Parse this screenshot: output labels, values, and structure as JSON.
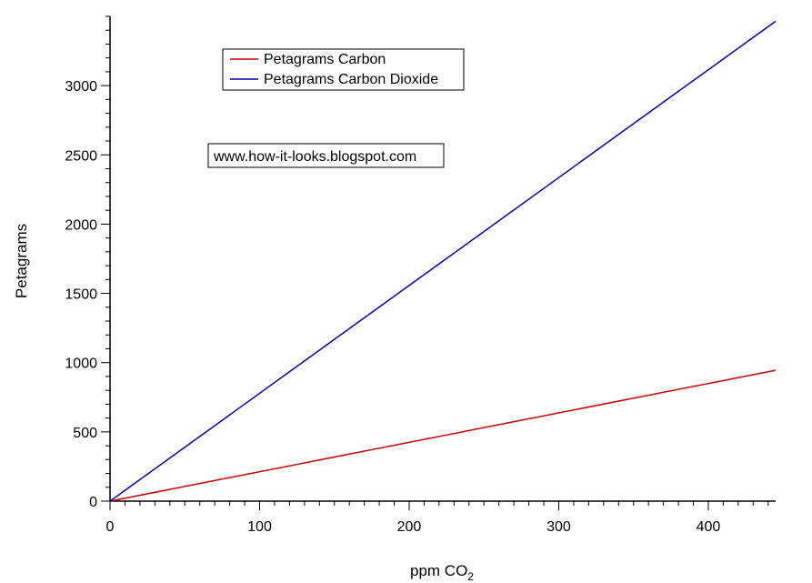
{
  "chart_data": {
    "type": "line",
    "xlabel_main": "ppm CO",
    "xlabel_sub": "2",
    "ylabel": "Petagrams",
    "xlim": [
      0,
      445
    ],
    "ylim": [
      0,
      3500
    ],
    "x_ticks": [
      0,
      100,
      200,
      300,
      400
    ],
    "y_ticks": [
      0,
      500,
      1000,
      1500,
      2000,
      2500,
      3000
    ],
    "x_minor_step": 10,
    "y_minor_step": 100,
    "grid": false,
    "legend_position": "top-center",
    "series": [
      {
        "name": "Petagrams Carbon",
        "color": "#cc0000",
        "x": [
          0,
          445
        ],
        "y": [
          0,
          945
        ]
      },
      {
        "name": "Petagrams Carbon Dioxide",
        "color": "#0000b0",
        "x": [
          0,
          445
        ],
        "y": [
          0,
          3465
        ]
      }
    ],
    "annotation": "www.how-it-looks.blogspot.com"
  }
}
